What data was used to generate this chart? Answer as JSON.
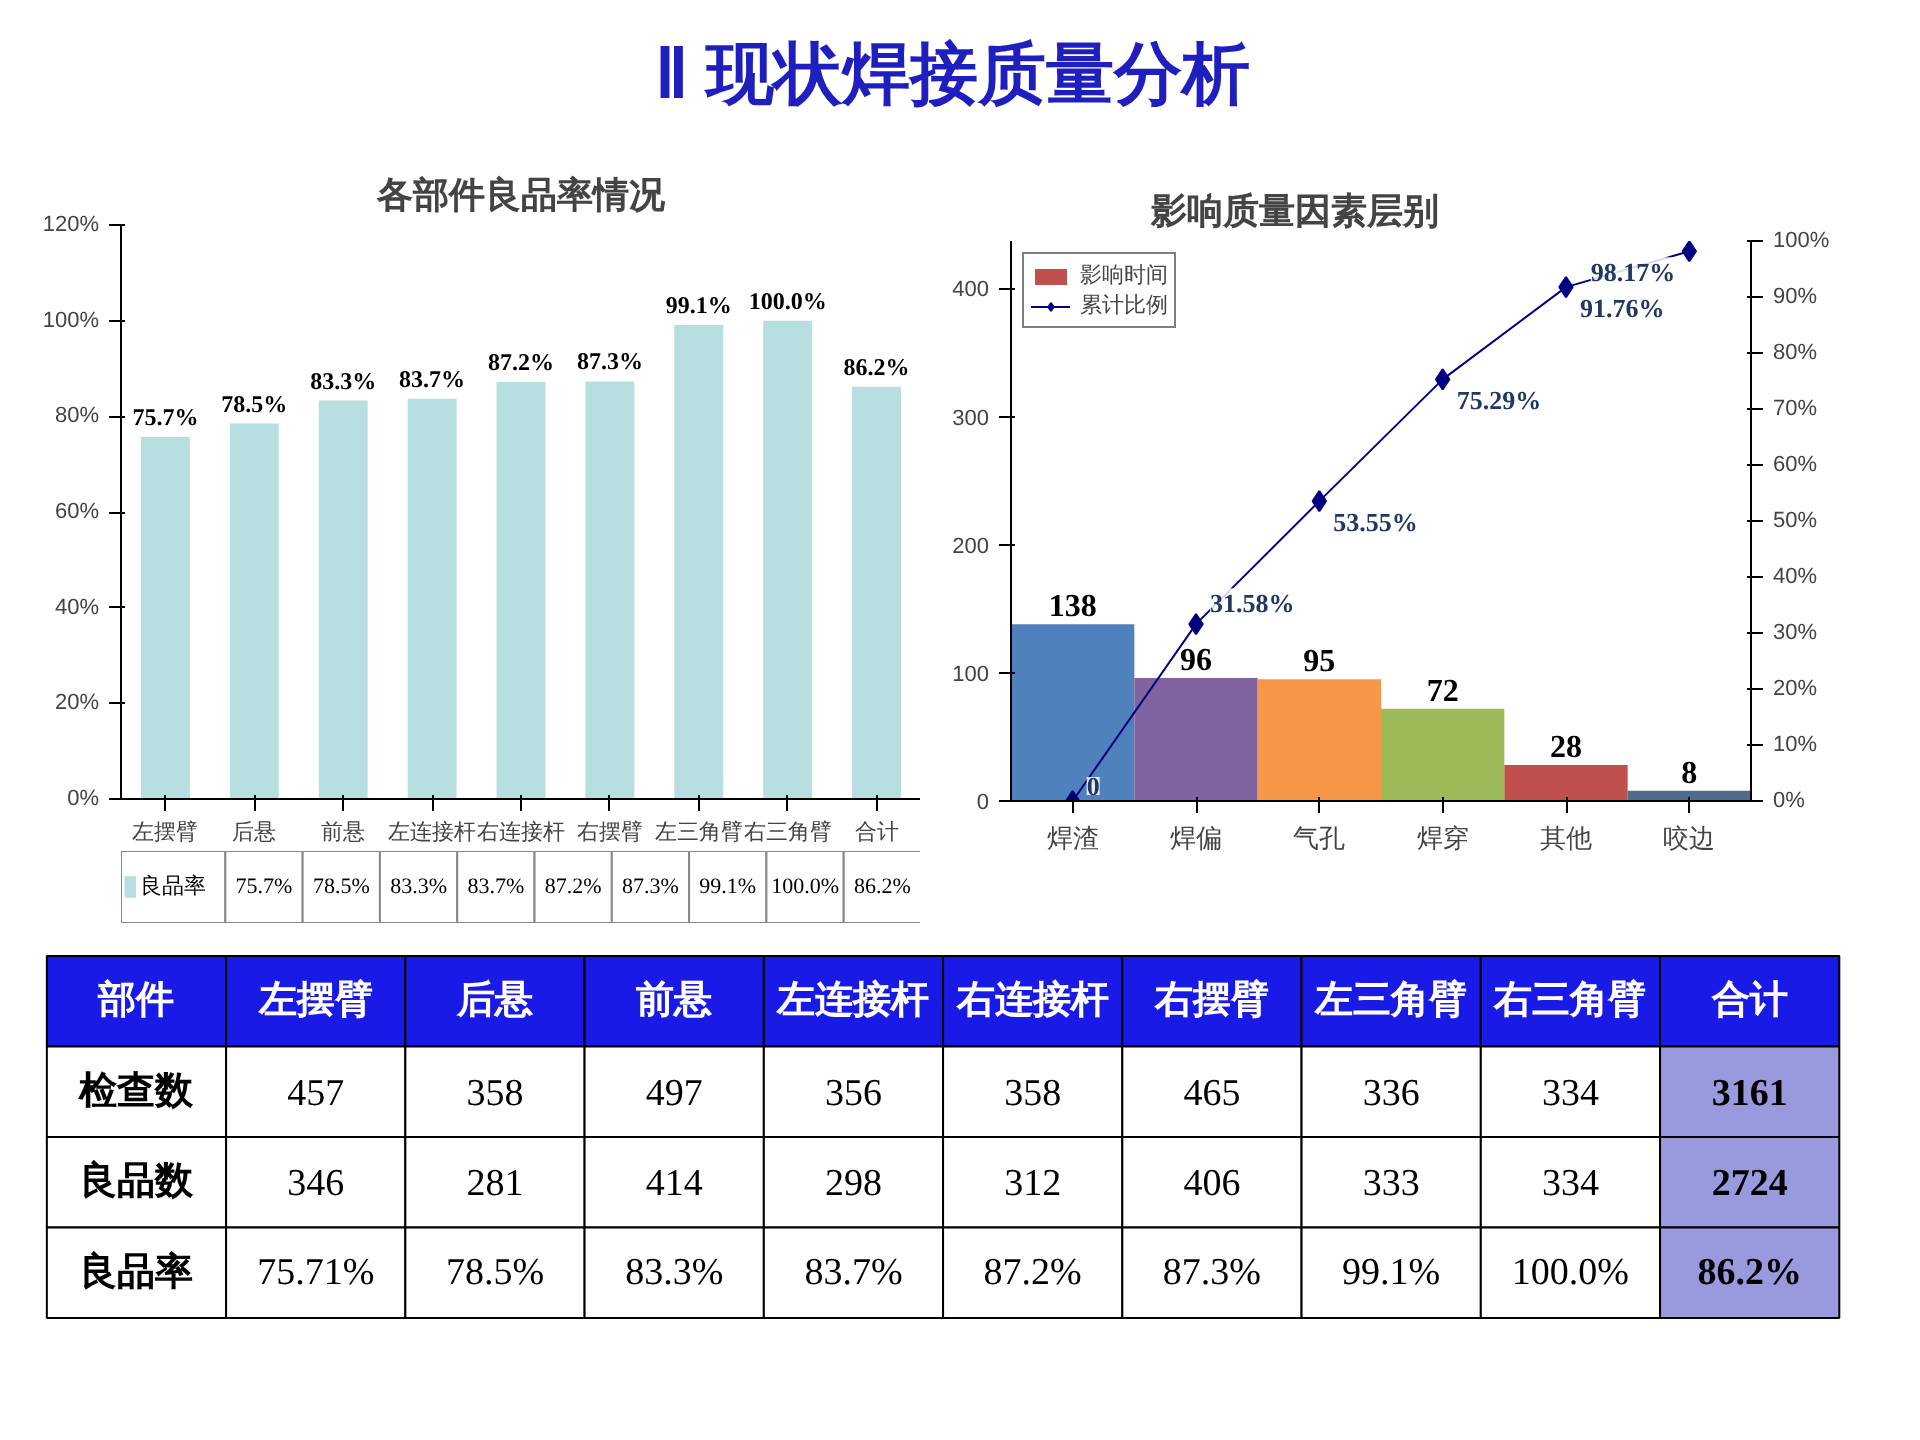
{
  "chart_data": [
    {
      "type": "other",
      "title": "Ⅱ  现状焊接质量分析"
    },
    {
      "type": "bar",
      "title": "各部件良品率情况",
      "categories": [
        "左摆臂",
        "后悬",
        "前悬",
        "左连接杆",
        "右连接杆",
        "右摆臂",
        "左三角臂",
        "右三角臂",
        "合计"
      ],
      "series": [
        {
          "name": "良品率",
          "color": "#b7dfdf",
          "values": [
            75.7,
            78.5,
            83.3,
            83.7,
            87.2,
            87.3,
            99.1,
            100.0,
            86.2
          ],
          "value_labels": [
            "75.7%",
            "78.5%",
            "83.3%",
            "83.7%",
            "87.2%",
            "87.3%",
            "99.1%",
            "100.0%",
            "86.2%"
          ]
        }
      ],
      "ylim": [
        0,
        120
      ],
      "yticks": [
        {
          "value": 0,
          "label": "0%"
        },
        {
          "value": 20,
          "label": "20%"
        },
        {
          "value": 40,
          "label": "40%"
        },
        {
          "value": 60,
          "label": "60%"
        },
        {
          "value": 80,
          "label": "80%"
        },
        {
          "value": 100,
          "label": "100%"
        },
        {
          "value": 120,
          "label": "120%"
        }
      ],
      "legend": "bottom",
      "grid": false
    },
    {
      "type": "bar",
      "title": "影响质量因素层别",
      "categories": [
        "焊渣",
        "焊偏",
        "气孔",
        "焊穿",
        "其他",
        "咬边"
      ],
      "series": [
        {
          "name": "影响时间",
          "color": "#c0504d",
          "colors": [
            "#4f81bd",
            "#8064a2",
            "#f79646",
            "#9bbb59",
            "#c0504d",
            "#4f6d8a"
          ],
          "values": [
            138,
            96,
            95,
            72,
            28,
            8
          ],
          "value_labels": [
            "138",
            "96",
            "95",
            "72",
            "28",
            "8"
          ]
        },
        {
          "name": "累计比例",
          "type": "line",
          "axis": "y2",
          "color": "#000080",
          "values": [
            0,
            31.58,
            53.55,
            75.29,
            91.76,
            98.17
          ],
          "value_labels": [
            "0",
            "31.58%",
            "53.55%",
            "75.29%",
            "91.76%",
            "98.17%"
          ]
        }
      ],
      "ylim": [
        0,
        437
      ],
      "yticks": [
        0,
        100,
        200,
        300,
        400
      ],
      "y2lim": [
        0,
        100
      ],
      "y2ticks": [
        {
          "value": 0,
          "label": "0%"
        },
        {
          "value": 10,
          "label": "10%"
        },
        {
          "value": 20,
          "label": "20%"
        },
        {
          "value": 30,
          "label": "30%"
        },
        {
          "value": 40,
          "label": "40%"
        },
        {
          "value": 50,
          "label": "50%"
        },
        {
          "value": 60,
          "label": "60%"
        },
        {
          "value": 70,
          "label": "70%"
        },
        {
          "value": 80,
          "label": "80%"
        },
        {
          "value": 90,
          "label": "90%"
        },
        {
          "value": 100,
          "label": "100%"
        }
      ],
      "marker": "diamond",
      "legend": "top left",
      "grid": false
    },
    {
      "type": "other",
      "title": "部件",
      "categories": [
        "左摆臂",
        "后悬",
        "前悬",
        "左连接杆",
        "右连接杆",
        "右摆臂",
        "左三角臂",
        "右三角臂",
        "合计"
      ],
      "y_categories": [
        "检查数",
        "良品数",
        "良品率"
      ],
      "cell_labels": [
        [
          "457",
          "358",
          "497",
          "356",
          "358",
          "465",
          "336",
          "334",
          "3161"
        ],
        [
          "346",
          "281",
          "414",
          "298",
          "312",
          "406",
          "333",
          "334",
          "2724"
        ],
        [
          "75.71%",
          "78.5%",
          "83.3%",
          "83.7%",
          "87.2%",
          "87.3%",
          "99.1%",
          "100.0%",
          "86.2%"
        ]
      ]
    }
  ]
}
